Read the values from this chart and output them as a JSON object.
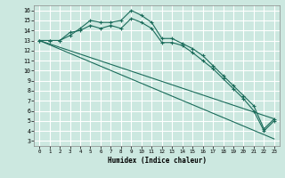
{
  "xlabel": "Humidex (Indice chaleur)",
  "bg_color": "#cce8e0",
  "grid_major_color": "#ffffff",
  "grid_minor_color": "#e8b8b8",
  "line_color": "#1a6b5a",
  "xlim": [
    -0.5,
    23.5
  ],
  "ylim": [
    2.5,
    16.5
  ],
  "xticks": [
    0,
    1,
    2,
    3,
    4,
    5,
    6,
    7,
    8,
    9,
    10,
    11,
    12,
    13,
    14,
    15,
    16,
    17,
    18,
    19,
    20,
    21,
    22,
    23
  ],
  "yticks": [
    3,
    4,
    5,
    6,
    7,
    8,
    9,
    10,
    11,
    12,
    13,
    14,
    15,
    16
  ],
  "series1_x": [
    0,
    1,
    2,
    3,
    4,
    5,
    6,
    7,
    8,
    9,
    10,
    11,
    12,
    13,
    14,
    15,
    16,
    17,
    18,
    19,
    20,
    21,
    22,
    23
  ],
  "series1_y": [
    13.0,
    13.0,
    13.0,
    13.5,
    14.2,
    15.0,
    14.8,
    14.8,
    15.0,
    16.0,
    15.5,
    14.8,
    13.2,
    13.2,
    12.7,
    12.2,
    11.5,
    10.5,
    9.5,
    8.5,
    7.5,
    6.5,
    4.2,
    5.2
  ],
  "series2_x": [
    0,
    1,
    2,
    3,
    4,
    5,
    6,
    7,
    8,
    9,
    10,
    11,
    12,
    13,
    14,
    15,
    16,
    17,
    18,
    19,
    20,
    21,
    22,
    23
  ],
  "series2_y": [
    13.0,
    13.0,
    13.0,
    13.8,
    14.0,
    14.5,
    14.2,
    14.5,
    14.2,
    15.2,
    14.8,
    14.2,
    12.8,
    12.8,
    12.5,
    11.8,
    11.0,
    10.2,
    9.2,
    8.2,
    7.2,
    6.0,
    4.0,
    5.0
  ],
  "series3_x": [
    0,
    23
  ],
  "series3_y": [
    13.0,
    5.2
  ],
  "series4_x": [
    0,
    23
  ],
  "series4_y": [
    13.0,
    3.2
  ]
}
